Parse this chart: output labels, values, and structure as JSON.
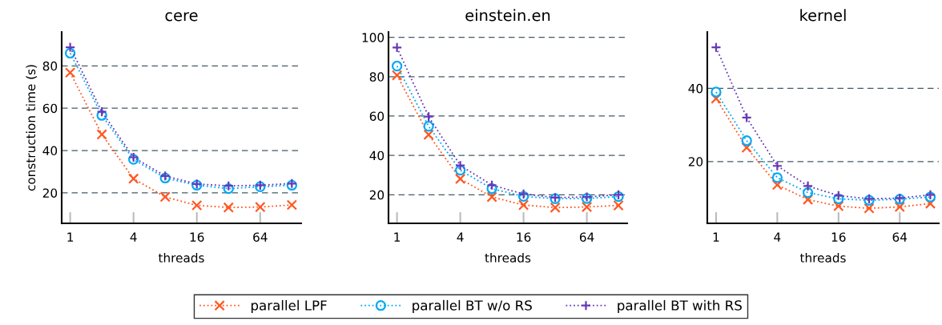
{
  "chart_data": [
    {
      "type": "line",
      "title": "cere",
      "xlabel": "threads",
      "ylabel": "construction time (s)",
      "log": "x",
      "x": [
        1,
        2,
        4,
        8,
        16,
        32,
        64,
        128
      ],
      "xlim": [
        0.83,
        157
      ],
      "xticks": [
        1,
        4,
        16,
        64
      ],
      "ylim": [
        5.6,
        96
      ],
      "yticks": [
        20,
        40,
        60,
        80
      ],
      "grid": "y",
      "line_style": "dotted",
      "legend": "bottom",
      "series": [
        {
          "name": "parallel LPF",
          "color": "#ff5722",
          "marker": "cross",
          "values": [
            76.8,
            47.6,
            26.7,
            18.1,
            14.1,
            13.1,
            13.3,
            14.3
          ]
        },
        {
          "name": "parallel BT w/o RS",
          "color": "#03a9f4",
          "marker": "circle",
          "values": [
            86,
            56.6,
            35.8,
            27,
            23.6,
            22,
            22.9,
            23.6
          ]
        },
        {
          "name": "parallel BT with RS",
          "color": "#673ab7",
          "marker": "plus",
          "values": [
            88.8,
            58.3,
            36.8,
            28,
            24.2,
            23.3,
            23.6,
            24.4
          ]
        }
      ]
    },
    {
      "type": "line",
      "title": "einstein.en",
      "xlabel": "threads",
      "log": "x",
      "x": [
        1,
        2,
        4,
        8,
        16,
        32,
        64,
        128
      ],
      "xlim": [
        0.83,
        155
      ],
      "xticks": [
        1,
        4,
        16,
        64
      ],
      "ylim": [
        5.5,
        102.7
      ],
      "yticks": [
        20,
        40,
        60,
        80,
        100
      ],
      "grid": "y",
      "line_style": "dotted",
      "series": [
        {
          "name": "parallel LPF",
          "color": "#ff5722",
          "marker": "cross",
          "values": [
            80.7,
            50.5,
            28.1,
            18.9,
            14.8,
            13.5,
            13.8,
            14.6
          ]
        },
        {
          "name": "parallel BT w/o RS",
          "color": "#03a9f4",
          "marker": "circle",
          "values": [
            85.4,
            54.8,
            32.5,
            23.1,
            19.2,
            18,
            18.1,
            19.1
          ]
        },
        {
          "name": "parallel BT with RS",
          "color": "#673ab7",
          "marker": "plus",
          "values": [
            94.8,
            59.7,
            34.9,
            24.9,
            20.4,
            18.6,
            18.9,
            20
          ]
        }
      ]
    },
    {
      "type": "line",
      "title": "kernel",
      "xlabel": "threads",
      "log": "x",
      "x": [
        1,
        2,
        4,
        8,
        16,
        32,
        64,
        128
      ],
      "xlim": [
        0.82,
        155
      ],
      "xticks": [
        1,
        4,
        16,
        64
      ],
      "ylim": [
        3.1,
        55.4
      ],
      "yticks": [
        20,
        40
      ],
      "grid": "y",
      "line_style": "dotted",
      "series": [
        {
          "name": "parallel LPF",
          "color": "#ff5722",
          "marker": "cross",
          "values": [
            37.2,
            23.8,
            13.6,
            9.6,
            7.8,
            7.2,
            7.6,
            8.5
          ]
        },
        {
          "name": "parallel BT w/o RS",
          "color": "#03a9f4",
          "marker": "circle",
          "values": [
            39,
            25.7,
            15.6,
            11.5,
            9.8,
            9.4,
            9.7,
            10.3
          ]
        },
        {
          "name": "parallel BT with RS",
          "color": "#673ab7",
          "marker": "plus",
          "values": [
            51.2,
            32,
            18.8,
            13.3,
            10.7,
            9.8,
            10,
            10.9
          ]
        }
      ]
    }
  ]
}
